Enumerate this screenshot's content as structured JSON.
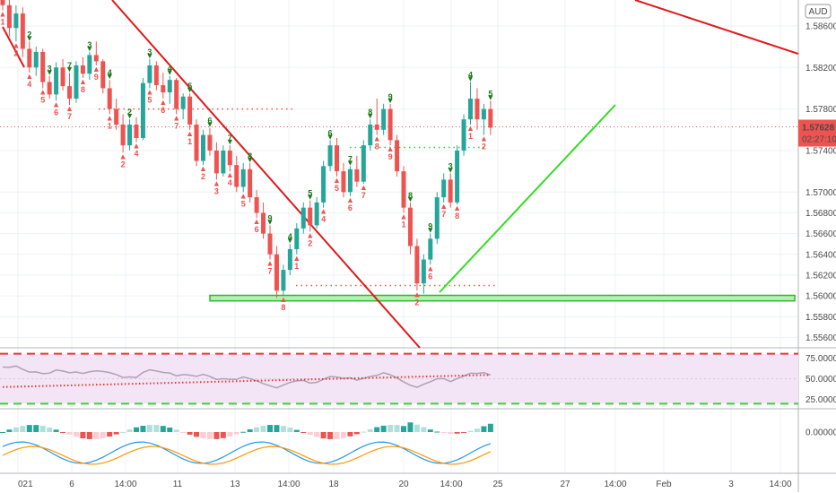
{
  "chart_data": {
    "type": "candlestick",
    "currency_label": "AUD",
    "price_axis": {
      "ticks": [
        "1.58600",
        "1.58200",
        "1.57800",
        "1.57400",
        "1.57000",
        "1.56800",
        "1.56600",
        "1.56400",
        "1.56200",
        "1.56000",
        "1.55800",
        "1.55600"
      ],
      "ylim": [
        1.555,
        1.5885
      ]
    },
    "time_axis": {
      "ticks": [
        "021",
        "6",
        "14:00",
        "11",
        "13",
        "14:00",
        "18",
        "20",
        "14:00",
        "25",
        "27",
        "14:00",
        "Feb",
        "3",
        "14:00"
      ]
    },
    "last_price": {
      "value": "1.57628",
      "countdown": "02:27:10",
      "color": "#ef5350"
    },
    "candles": [
      [
        1.5925,
        1.5935,
        1.5875,
        1.588
      ],
      [
        1.588,
        1.589,
        1.585,
        1.5858
      ],
      [
        1.5858,
        1.588,
        1.5845,
        1.5872
      ],
      [
        1.5872,
        1.5878,
        1.583,
        1.5838
      ],
      [
        1.5838,
        1.5845,
        1.5815,
        1.582
      ],
      [
        1.582,
        1.584,
        1.5812,
        1.5835
      ],
      [
        1.5835,
        1.5838,
        1.58,
        1.5806
      ],
      [
        1.5806,
        1.5812,
        1.579,
        1.5794
      ],
      [
        1.5794,
        1.5825,
        1.5788,
        1.582
      ],
      [
        1.582,
        1.5828,
        1.5798,
        1.5802
      ],
      [
        1.5802,
        1.5815,
        1.5784,
        1.579
      ],
      [
        1.579,
        1.5826,
        1.5786,
        1.5822
      ],
      [
        1.5822,
        1.583,
        1.581,
        1.5814
      ],
      [
        1.5814,
        1.5835,
        1.5808,
        1.5832
      ],
      [
        1.5832,
        1.5845,
        1.5822,
        1.5826
      ],
      [
        1.5826,
        1.5828,
        1.5795,
        1.58
      ],
      [
        1.58,
        1.5808,
        1.5775,
        1.578
      ],
      [
        1.578,
        1.579,
        1.576,
        1.5765
      ],
      [
        1.5765,
        1.5775,
        1.5738,
        1.5745
      ],
      [
        1.5745,
        1.577,
        1.574,
        1.5765
      ],
      [
        1.5765,
        1.5772,
        1.5748,
        1.5752
      ],
      [
        1.5752,
        1.581,
        1.575,
        1.5805
      ],
      [
        1.5805,
        1.5828,
        1.58,
        1.5822
      ],
      [
        1.5822,
        1.5826,
        1.5798,
        1.5803
      ],
      [
        1.5803,
        1.5815,
        1.579,
        1.5796
      ],
      [
        1.5796,
        1.5812,
        1.5785,
        1.5808
      ],
      [
        1.5808,
        1.581,
        1.5775,
        1.578
      ],
      [
        1.578,
        1.5795,
        1.577,
        1.5792
      ],
      [
        1.5792,
        1.5795,
        1.576,
        1.5765
      ],
      [
        1.5765,
        1.577,
        1.5725,
        1.573
      ],
      [
        1.573,
        1.576,
        1.5726,
        1.5755
      ],
      [
        1.5755,
        1.5762,
        1.5735,
        1.574
      ],
      [
        1.574,
        1.5748,
        1.5712,
        1.5718
      ],
      [
        1.5718,
        1.5745,
        1.5715,
        1.574
      ],
      [
        1.574,
        1.5745,
        1.572,
        1.5726
      ],
      [
        1.5726,
        1.5735,
        1.57,
        1.5705
      ],
      [
        1.5705,
        1.5728,
        1.57,
        1.5722
      ],
      [
        1.5722,
        1.5728,
        1.569,
        1.5695
      ],
      [
        1.5695,
        1.5702,
        1.5675,
        1.568
      ],
      [
        1.568,
        1.569,
        1.5655,
        1.566
      ],
      [
        1.566,
        1.5668,
        1.5635,
        1.564
      ],
      [
        1.564,
        1.5648,
        1.5598,
        1.5605
      ],
      [
        1.5605,
        1.563,
        1.56,
        1.5625
      ],
      [
        1.5625,
        1.565,
        1.562,
        1.5645
      ],
      [
        1.5645,
        1.567,
        1.564,
        1.5665
      ],
      [
        1.5665,
        1.569,
        1.566,
        1.5685
      ],
      [
        1.5685,
        1.5692,
        1.5662,
        1.5668
      ],
      [
        1.5668,
        1.5695,
        1.5665,
        1.569
      ],
      [
        1.569,
        1.573,
        1.5685,
        1.5725
      ],
      [
        1.5725,
        1.575,
        1.572,
        1.5745
      ],
      [
        1.5745,
        1.5752,
        1.5715,
        1.572
      ],
      [
        1.572,
        1.5728,
        1.5695,
        1.57
      ],
      [
        1.57,
        1.5725,
        1.5696,
        1.5722
      ],
      [
        1.5722,
        1.5735,
        1.5705,
        1.571
      ],
      [
        1.571,
        1.575,
        1.5708,
        1.5745
      ],
      [
        1.5745,
        1.577,
        1.574,
        1.5765
      ],
      [
        1.5765,
        1.579,
        1.5755,
        1.576
      ],
      [
        1.576,
        1.5785,
        1.5755,
        1.578
      ],
      [
        1.578,
        1.5785,
        1.5745,
        1.575
      ],
      [
        1.575,
        1.5755,
        1.5715,
        1.572
      ],
      [
        1.572,
        1.5725,
        1.568,
        1.5685
      ],
      [
        1.5685,
        1.569,
        1.564,
        1.5648
      ],
      [
        1.5648,
        1.5655,
        1.5605,
        1.5612
      ],
      [
        1.5612,
        1.564,
        1.5602,
        1.5635
      ],
      [
        1.5635,
        1.566,
        1.563,
        1.5655
      ],
      [
        1.5655,
        1.57,
        1.565,
        1.5695
      ],
      [
        1.5695,
        1.5718,
        1.569,
        1.5712
      ],
      [
        1.5712,
        1.5718,
        1.5685,
        1.569
      ],
      [
        1.569,
        1.5745,
        1.5688,
        1.574
      ],
      [
        1.574,
        1.5775,
        1.5735,
        1.577
      ],
      [
        1.577,
        1.5806,
        1.5765,
        1.579
      ],
      [
        1.579,
        1.58,
        1.576,
        1.577
      ],
      [
        1.577,
        1.5785,
        1.5755,
        1.578
      ],
      [
        1.578,
        1.5788,
        1.5755,
        1.5762
      ]
    ],
    "rsi": {
      "levels": [
        "75.00000",
        "50.00000",
        "25.00000"
      ],
      "ylim": [
        15,
        85
      ],
      "upper_band": 80,
      "lower_band": 20
    },
    "macd": {
      "levels": [
        "0.00000"
      ]
    },
    "td_labels": {
      "sell": [
        "1",
        "2",
        "3",
        "7",
        "3",
        "4",
        "2",
        "3",
        "4",
        "5",
        "6",
        "7",
        "8",
        "9",
        "4",
        "5",
        "6",
        "7",
        "8",
        "9",
        "8",
        "9",
        "3",
        "4",
        "5",
        "6",
        "7",
        "8",
        "9",
        "7"
      ],
      "buy": [
        "1",
        "2",
        "4",
        "5",
        "6",
        "7",
        "8",
        "9",
        "1",
        "2",
        "4",
        "5",
        "6",
        "7",
        "1",
        "2",
        "3",
        "4",
        "5",
        "6",
        "7",
        "8",
        "1",
        "2",
        "4",
        "5",
        "6",
        "7",
        "8",
        "9",
        "1",
        "2",
        "6",
        "7",
        "8",
        "1",
        "2",
        "3",
        "4",
        "5",
        "6",
        "7",
        "8"
      ]
    },
    "colors": {
      "up": "#26a69a",
      "down": "#ef5350",
      "trend_down": "#e0191a",
      "trend_up": "#33dd22",
      "support_fill": "#b7f0b0",
      "support_edge": "#2eb82e",
      "rsi_band": "#f3e5f5",
      "rsi_upper": "#e53935",
      "rsi_lower": "#3ccf3c",
      "rsi_line": "#b0a0b8",
      "rsi_ma": "#e53935",
      "macd_line": "#2196f3",
      "signal_line": "#ff9800"
    }
  }
}
